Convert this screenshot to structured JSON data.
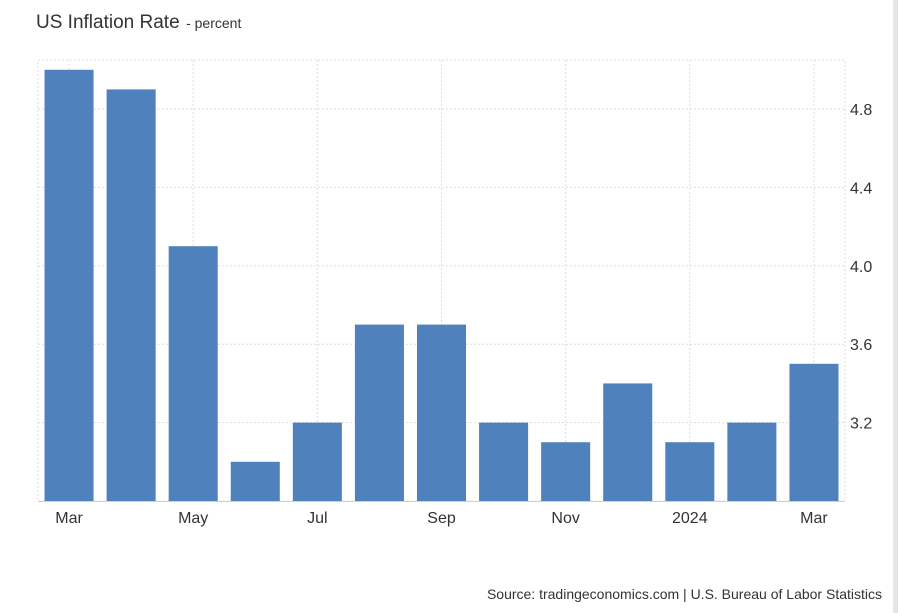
{
  "header": {
    "title": "US Inflation Rate",
    "subtitle": "- percent"
  },
  "footer": {
    "source": "Source: tradingeconomics.com | U.S. Bureau of Labor Statistics"
  },
  "colors": {
    "bar": "#4f81bd",
    "grid": "#dedede",
    "text": "#333333"
  },
  "chart_data": {
    "type": "bar",
    "title": "US Inflation Rate",
    "subtitle": "- percent",
    "categories": [
      "Mar 2023",
      "Apr 2023",
      "May 2023",
      "Jun 2023",
      "Jul 2023",
      "Aug 2023",
      "Sep 2023",
      "Oct 2023",
      "Nov 2023",
      "Dec 2023",
      "Jan 2024",
      "Feb 2024",
      "Mar 2024"
    ],
    "values": [
      5.0,
      4.9,
      4.1,
      3.0,
      3.2,
      3.7,
      3.7,
      3.2,
      3.1,
      3.4,
      3.1,
      3.2,
      3.5
    ],
    "x_tick_labels": [
      "Mar",
      "",
      "May",
      "",
      "Jul",
      "",
      "Sep",
      "",
      "Nov",
      "",
      "2024",
      "",
      "Mar"
    ],
    "y_ticks": [
      3.2,
      3.6,
      4.0,
      4.4,
      4.8
    ],
    "ylim": [
      2.8,
      5.05
    ],
    "y_axis_position": "right",
    "grid": true,
    "legend": "none",
    "xlabel": "",
    "ylabel": ""
  }
}
